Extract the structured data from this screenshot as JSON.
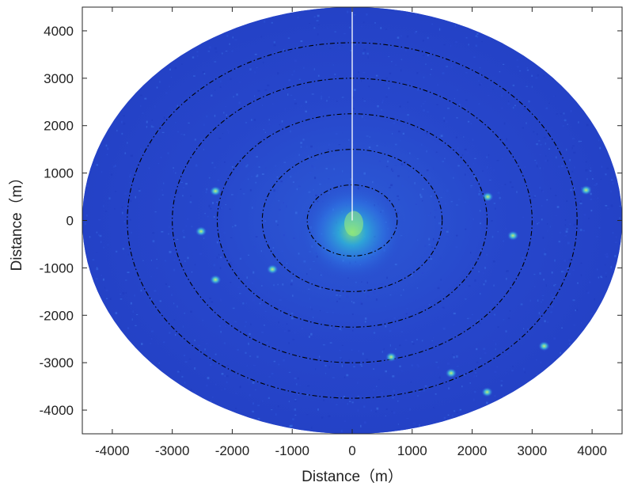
{
  "chart_data": {
    "type": "heatmap",
    "subtype": "polar-radar-ppi",
    "title": "",
    "xlabel": "Distance（m）",
    "ylabel": "Distance（m）",
    "xlim": [
      -4500,
      4500
    ],
    "ylim": [
      -4500,
      4500
    ],
    "x_ticks": [
      -4000,
      -3000,
      -2000,
      -1000,
      0,
      1000,
      2000,
      3000,
      4000
    ],
    "y_ticks": [
      -4000,
      -3000,
      -2000,
      -1000,
      0,
      1000,
      2000,
      3000,
      4000
    ],
    "max_range": 4500,
    "range_rings": [
      750,
      1500,
      2250,
      3000,
      3750
    ],
    "ring_style": "dash-dot",
    "grid": false,
    "colormap": "jet",
    "background_color": "#2540c8",
    "ring_color": "#000000",
    "heading_line": {
      "angle_deg": 90,
      "color": "#ffffff"
    },
    "bright_targets": [
      {
        "x": -2280,
        "y": 620
      },
      {
        "x": -2520,
        "y": -230
      },
      {
        "x": -2280,
        "y": -1250
      },
      {
        "x": -1330,
        "y": -1030
      },
      {
        "x": 2260,
        "y": 500
      },
      {
        "x": 2680,
        "y": -320
      },
      {
        "x": 3900,
        "y": 640
      },
      {
        "x": 650,
        "y": -2880
      },
      {
        "x": 1650,
        "y": -3220
      },
      {
        "x": 2250,
        "y": -3620
      },
      {
        "x": 3200,
        "y": -2650
      }
    ]
  }
}
